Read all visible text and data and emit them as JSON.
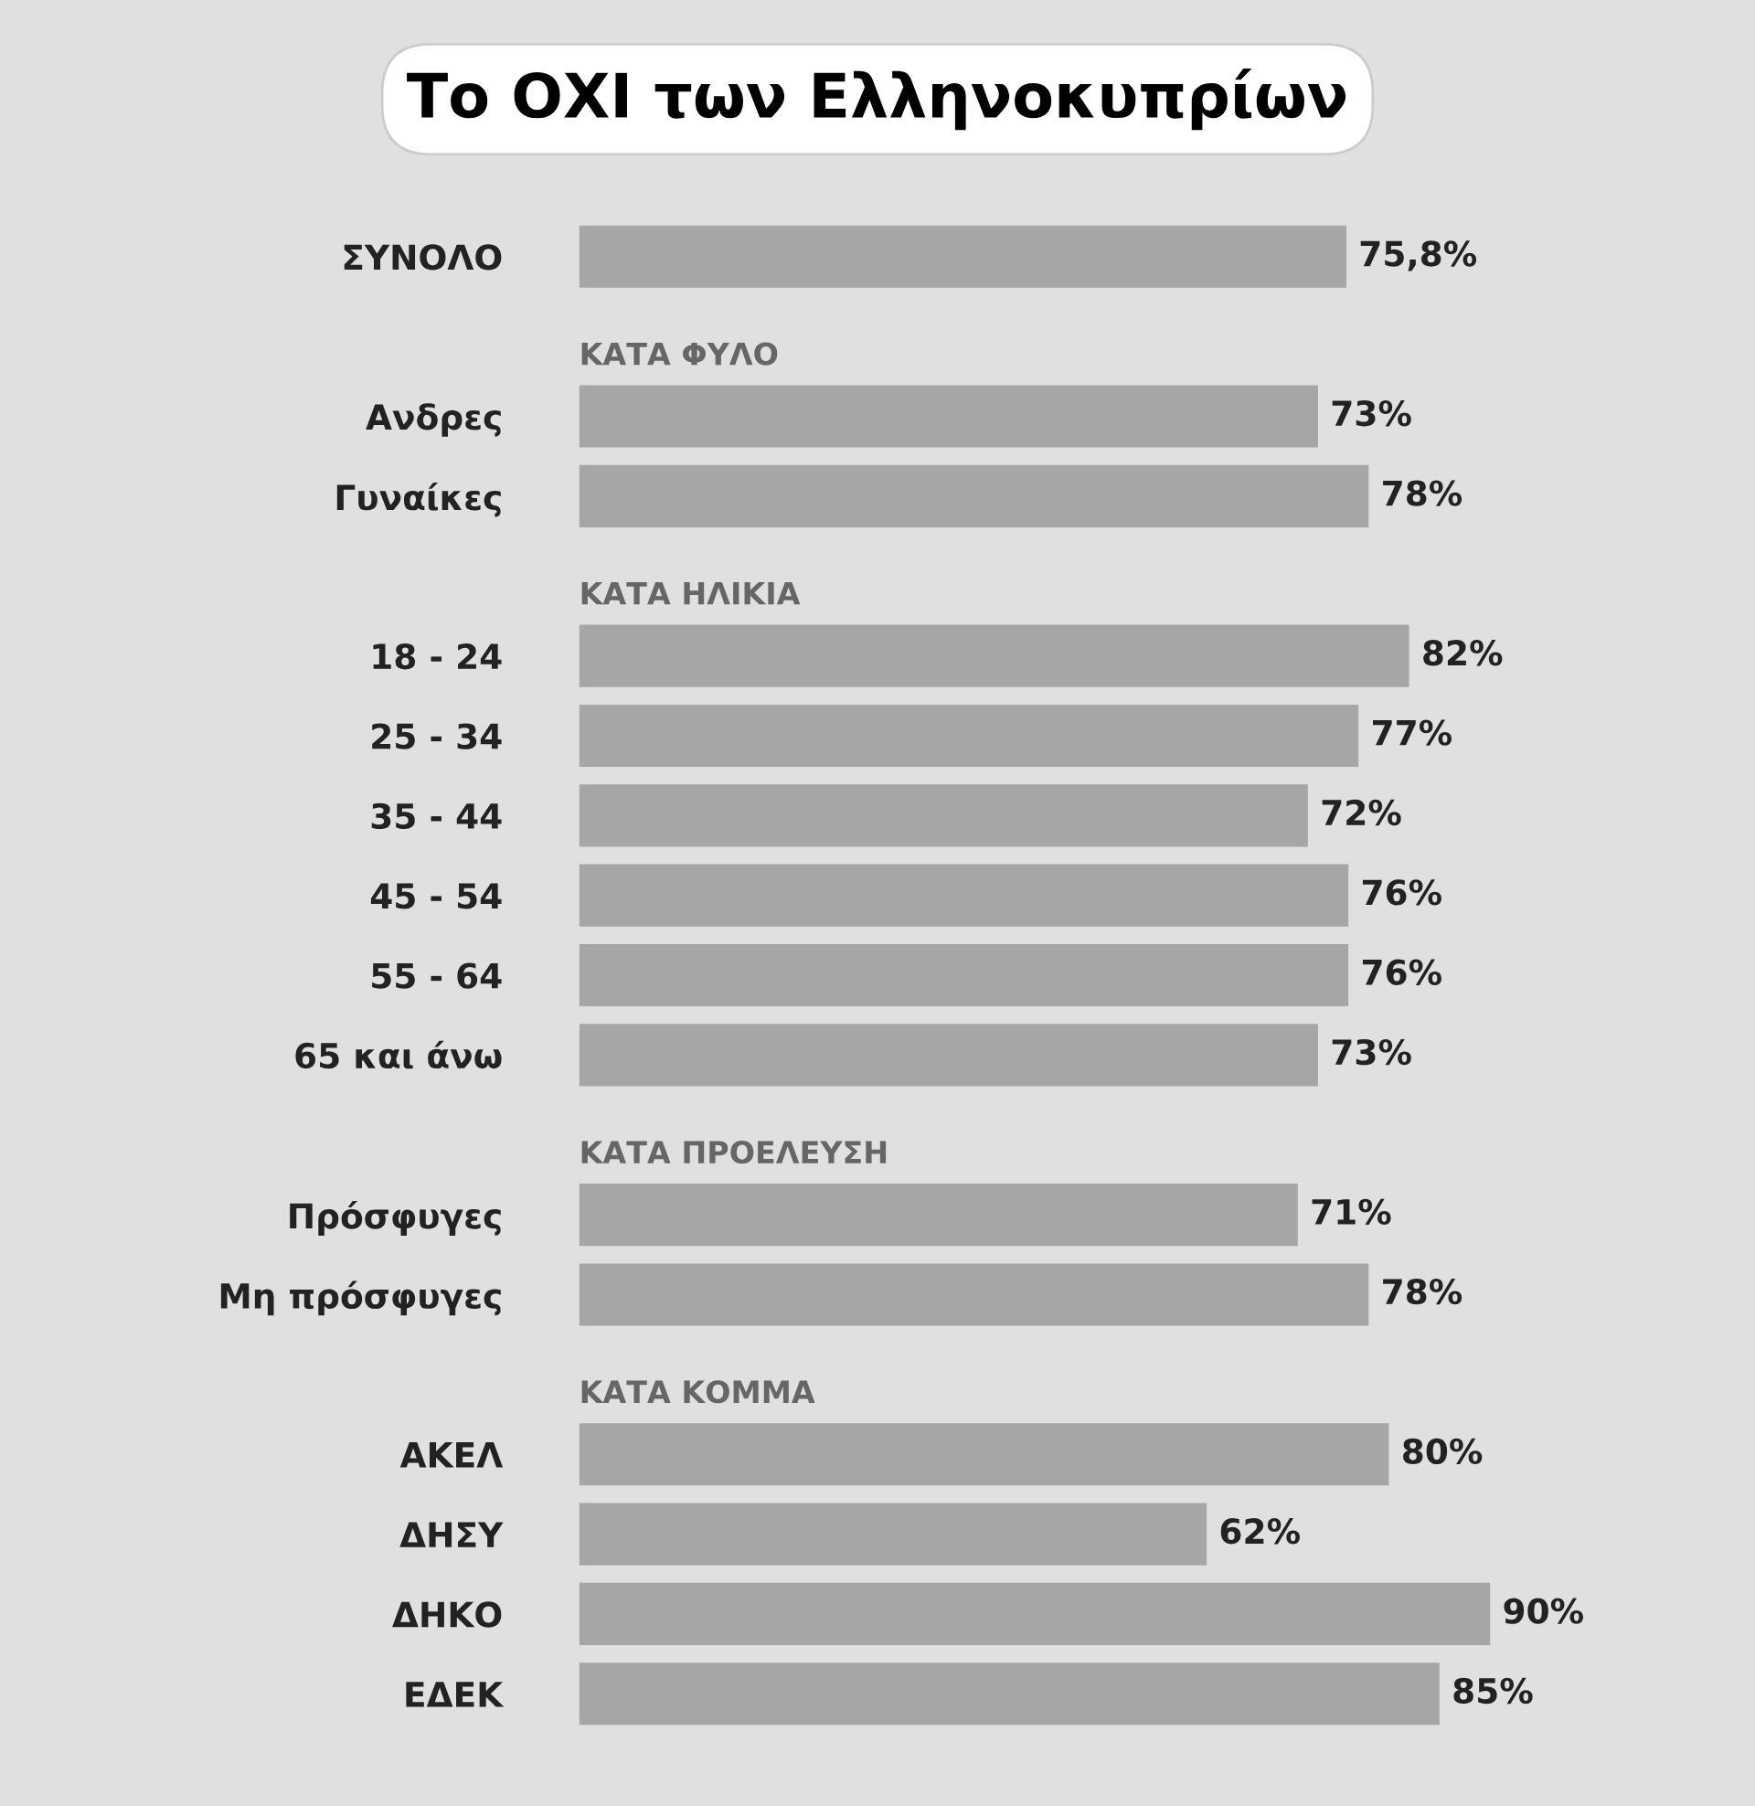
{
  "chart_data": {
    "type": "bar",
    "orientation": "horizontal",
    "title": "Το ΟΧΙ των Ελληνοκυπρίων",
    "categories": [
      "ΣΥΝΟΛΟ",
      "ΚΑΤΑ ΦΥΛΟ",
      "Ανδρες",
      "Γυναίκες",
      "ΚΑΤΑ ΗΛΙΚΙΑ",
      "18 - 24",
      "25 - 34",
      "35 - 44",
      "45 - 54",
      "55 - 64",
      "65 και άνω",
      "ΚΑΤΑ ΠΡΟΕΛΕΥΣΗ",
      "Πρόσφυγες",
      "Μη πρόσφυγες",
      "ΚΑΤΑ ΚΟΜΜΑ",
      "ΑΚΕΛ",
      "ΔΗΣΥ",
      "ΔΗΚΟ",
      "ΕΔΕΚ"
    ],
    "values": [
      75.8,
      null,
      73,
      78,
      null,
      82,
      77,
      72,
      76,
      76,
      73,
      null,
      71,
      78,
      null,
      80,
      62,
      90,
      85
    ],
    "value_labels": [
      "75,8%",
      null,
      "73%",
      "78%",
      null,
      "82%",
      "77%",
      "72%",
      "76%",
      "76%",
      "73%",
      null,
      "71%",
      "78%",
      null,
      "80%",
      "62%",
      "90%",
      "85%"
    ],
    "color": "#a6a6a6",
    "tick_labels": "y"
  }
}
